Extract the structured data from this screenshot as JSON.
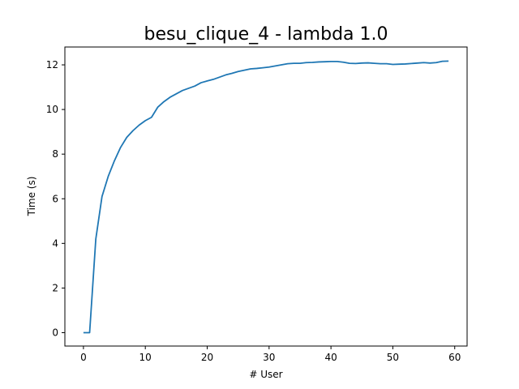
{
  "chart_data": {
    "type": "line",
    "title": "besu_clique_4 - lambda 1.0",
    "xlabel": "# User",
    "ylabel": "Time (s)",
    "xlim": [
      -3,
      62
    ],
    "ylim": [
      -0.6,
      12.8
    ],
    "xticks": [
      0,
      10,
      20,
      30,
      40,
      50,
      60
    ],
    "yticks": [
      0,
      2,
      4,
      6,
      8,
      10,
      12
    ],
    "grid": false,
    "line_color": "#1f77b4",
    "series": [
      {
        "x": [
          0,
          1,
          2,
          3,
          4,
          5,
          6,
          7,
          8,
          9,
          10,
          11,
          12,
          13,
          14,
          15,
          16,
          17,
          18,
          19,
          20,
          21,
          22,
          23,
          24,
          25,
          26,
          27,
          28,
          29,
          30,
          31,
          32,
          33,
          34,
          35,
          36,
          37,
          38,
          39,
          40,
          41,
          42,
          43,
          44,
          45,
          46,
          47,
          48,
          49,
          50,
          51,
          52,
          53,
          54,
          55,
          56,
          57,
          58,
          59
        ],
        "values": [
          0.0,
          0.0,
          4.2,
          6.1,
          7.0,
          7.7,
          8.3,
          8.75,
          9.05,
          9.3,
          9.5,
          9.65,
          10.1,
          10.35,
          10.55,
          10.7,
          10.85,
          10.95,
          11.05,
          11.2,
          11.28,
          11.35,
          11.45,
          11.55,
          11.62,
          11.7,
          11.76,
          11.82,
          11.84,
          11.87,
          11.9,
          11.95,
          12.0,
          12.05,
          12.07,
          12.07,
          12.1,
          12.11,
          12.13,
          12.14,
          12.15,
          12.15,
          12.12,
          12.07,
          12.06,
          12.08,
          12.09,
          12.07,
          12.05,
          12.05,
          12.02,
          12.03,
          12.04,
          12.06,
          12.08,
          12.1,
          12.08,
          12.1,
          12.16,
          12.17
        ]
      }
    ]
  }
}
